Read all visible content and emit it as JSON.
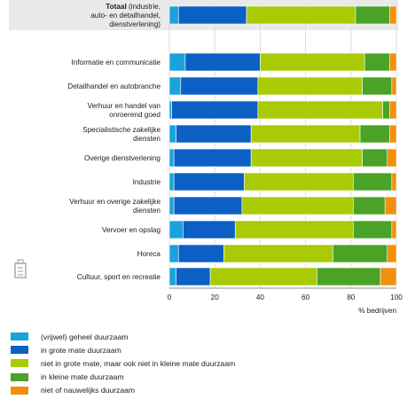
{
  "chart_data": {
    "type": "bar",
    "orientation": "horizontal",
    "stacked": true,
    "title": "",
    "xlabel": "% bedrijven",
    "ylabel": "",
    "xlim": [
      0,
      100
    ],
    "xticks": [
      "0",
      "20",
      "40",
      "60",
      "80",
      "100"
    ],
    "grid": true,
    "legend_position": "bottom",
    "highlighted_category_index": 0,
    "categories": [
      {
        "bold": "Totaal",
        "rest": "(industrie, auto- en detailhandel, dienstverlening)"
      },
      {
        "bold": "",
        "rest": "Informatie en communicatie"
      },
      {
        "bold": "",
        "rest": "Detailhandel en autobranche"
      },
      {
        "bold": "",
        "rest": "Verhuur en handel van onroerend goed"
      },
      {
        "bold": "",
        "rest": "Specialistische zakelijke diensten"
      },
      {
        "bold": "",
        "rest": "Overige dienstverlening"
      },
      {
        "bold": "",
        "rest": "Industrie"
      },
      {
        "bold": "",
        "rest": "Verhuur en overige zakelijke diensten"
      },
      {
        "bold": "",
        "rest": "Vervoer en opslag"
      },
      {
        "bold": "",
        "rest": "Horeca"
      },
      {
        "bold": "",
        "rest": "Cultuur, sport en recreatie"
      }
    ],
    "category_gaps_after": [
      0
    ],
    "series": [
      {
        "name": "(vrijwel) geheel duurzaam",
        "color": "#1aa3db",
        "values": [
          4,
          7,
          5,
          1,
          3,
          2,
          2,
          2,
          6,
          4,
          3
        ]
      },
      {
        "name": "in grote mate duurzaam",
        "color": "#0c5fc4",
        "values": [
          30,
          33,
          34,
          38,
          33,
          34,
          31,
          30,
          23,
          20,
          15
        ]
      },
      {
        "name": "niet in grote mate, maar ook niet in kleine mate duurzaam",
        "color": "#a9cb06",
        "values": [
          48,
          46,
          46,
          55,
          48,
          49,
          48,
          49,
          52,
          48,
          47
        ]
      },
      {
        "name": "in kleine mate duurzaam",
        "color": "#4aa327",
        "values": [
          15,
          11,
          13,
          3,
          13,
          11,
          17,
          14,
          17,
          24,
          28
        ]
      },
      {
        "name": "niet of nauwelijks duurzaam",
        "color": "#f1900a",
        "values": [
          3,
          3,
          2,
          3,
          3,
          4,
          2,
          5,
          2,
          4,
          7
        ]
      }
    ]
  },
  "colors": {
    "highlight_band": "#e9e9e9",
    "grid": "#dcdcdc",
    "axis": "#8c8c8c",
    "text": "#1c1c1c",
    "icon": "#aaaaaa"
  },
  "icons": {
    "corner_icon": "building-icon"
  }
}
